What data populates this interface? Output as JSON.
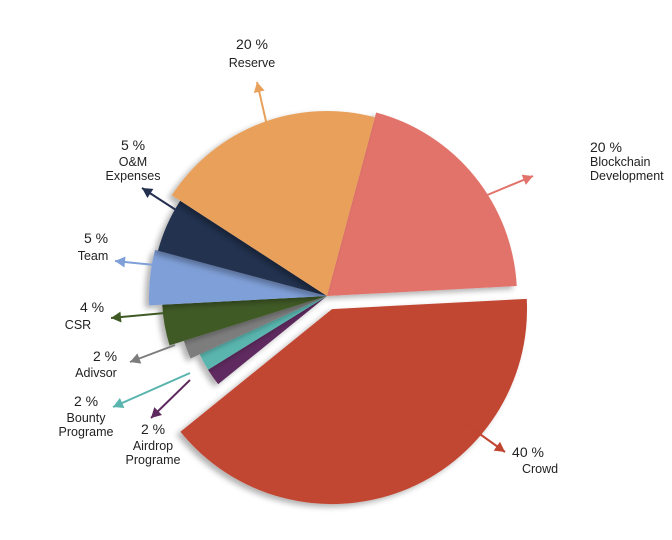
{
  "chart_data": {
    "type": "pie",
    "title": "",
    "slices": [
      {
        "label": "Blockchain Development",
        "label_lines": [
          "Blockchain",
          "Development"
        ],
        "value": 20,
        "value_label": "20 %",
        "color": "#e2736b"
      },
      {
        "label": "Crowd",
        "label_lines": [
          "Crowd"
        ],
        "value": 40,
        "value_label": "40 %",
        "color": "#c14632"
      },
      {
        "label": "Airdrop Programe",
        "label_lines": [
          "Airdrop",
          "Programe"
        ],
        "value": 2,
        "value_label": "2 %",
        "color": "#5e2a5e"
      },
      {
        "label": "Bounty Programe",
        "label_lines": [
          "Bounty",
          "Programe"
        ],
        "value": 2,
        "value_label": "2 %",
        "color": "#5ab5af"
      },
      {
        "label": "Adivsor",
        "label_lines": [
          "Adivsor"
        ],
        "value": 2,
        "value_label": "2 %",
        "color": "#7d7d7d"
      },
      {
        "label": "CSR",
        "label_lines": [
          "CSR"
        ],
        "value": 4,
        "value_label": "4 %",
        "color": "#3f5a25"
      },
      {
        "label": "Team",
        "label_lines": [
          "Team"
        ],
        "value": 5,
        "value_label": "5 %",
        "color": "#7f9fd8"
      },
      {
        "label": "O&M Expenses",
        "label_lines": [
          "O&M",
          "Expenses"
        ],
        "value": 5,
        "value_label": "5 %",
        "color": "#243050"
      },
      {
        "label": "Reserve",
        "label_lines": [
          "Reserve"
        ],
        "value": 20,
        "value_label": "20 %",
        "color": "#e8a05a"
      }
    ],
    "legend": "none"
  }
}
